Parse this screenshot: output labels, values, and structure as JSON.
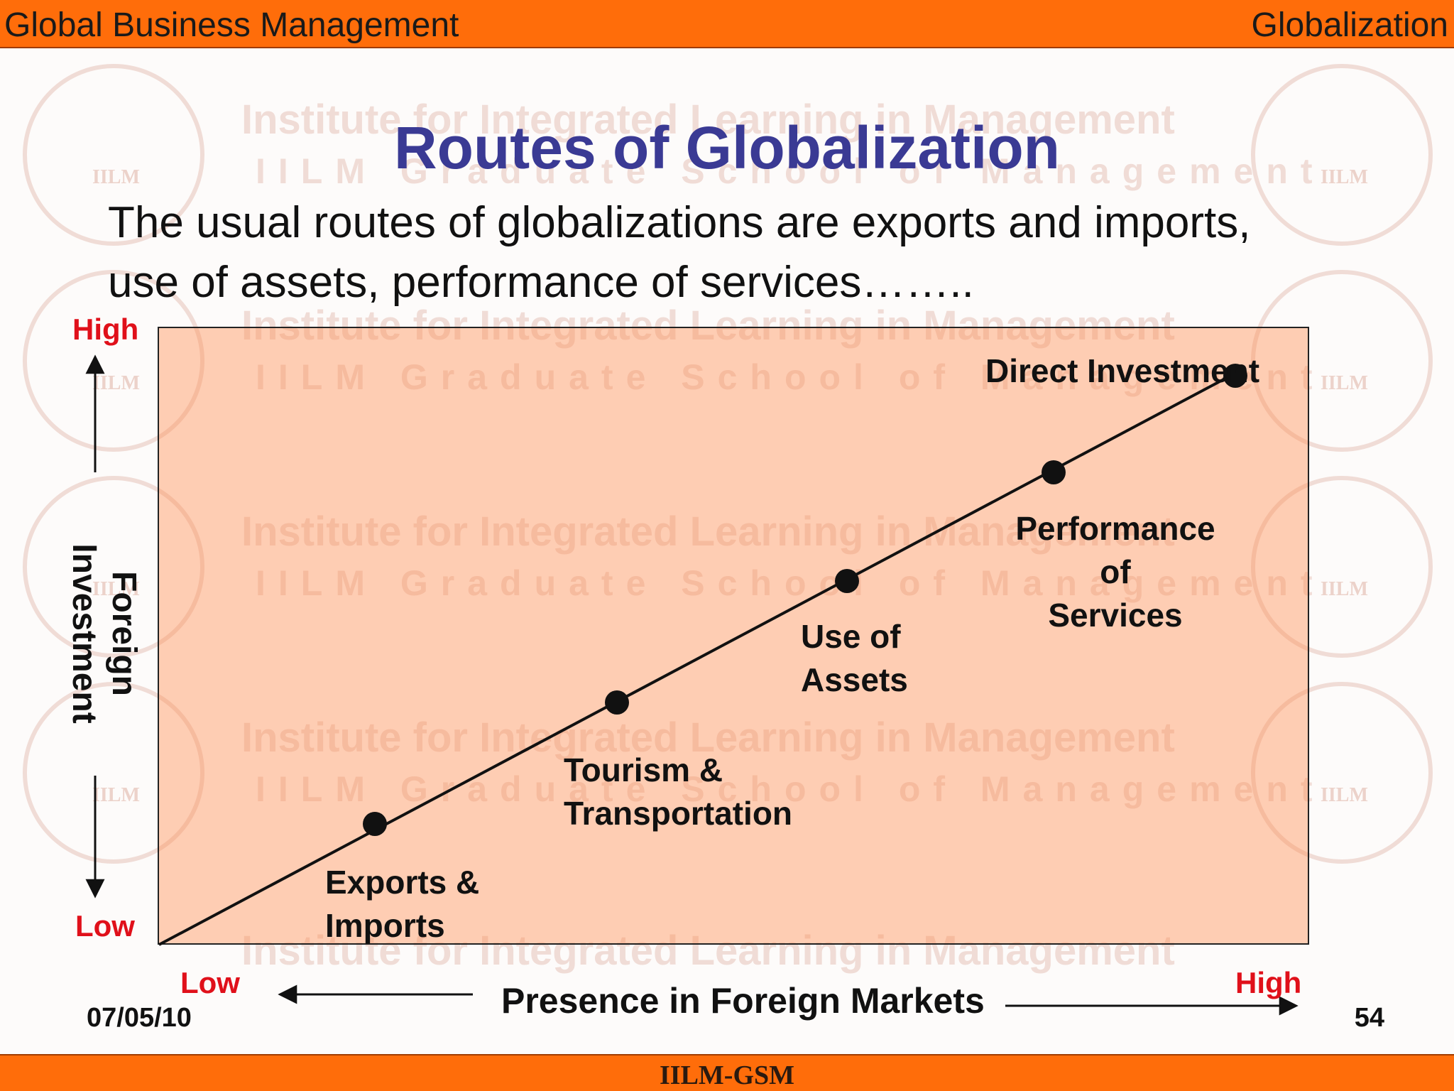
{
  "header": {
    "left": "Global Business Management",
    "right": "Globalization"
  },
  "footer": {
    "center": "IILM-GSM",
    "date": "07/05/10",
    "page": "54"
  },
  "watermark": {
    "line1": "Institute for Integrated Learning in Management",
    "line2": "IILM Graduate School of Management",
    "seal": "IILM"
  },
  "slide": {
    "title": "Routes of Globalization",
    "intro_line1": "The usual routes of globalizations are exports and imports,",
    "intro_line2": "use of assets, performance of services……..",
    "y_axis": {
      "label_line1": "Foreign",
      "label_line2": "Investment",
      "high": "High",
      "low": "Low"
    },
    "x_axis": {
      "label": "Presence in Foreign Markets",
      "low": "Low",
      "high": "High"
    },
    "routes": [
      {
        "line1": "Exports &",
        "line2": "Imports"
      },
      {
        "line1": "Tourism &",
        "line2": "Transportation"
      },
      {
        "line1": "Use of",
        "line2": "Assets"
      },
      {
        "line1": "Performance",
        "line2": "of",
        "line3": "Services"
      },
      {
        "line1": "Direct Investment"
      }
    ]
  },
  "colors": {
    "bar": "#ff6d0a",
    "title": "#3a3a94",
    "plot": "#f9b48c",
    "axis_ends": "#e0101a"
  }
}
